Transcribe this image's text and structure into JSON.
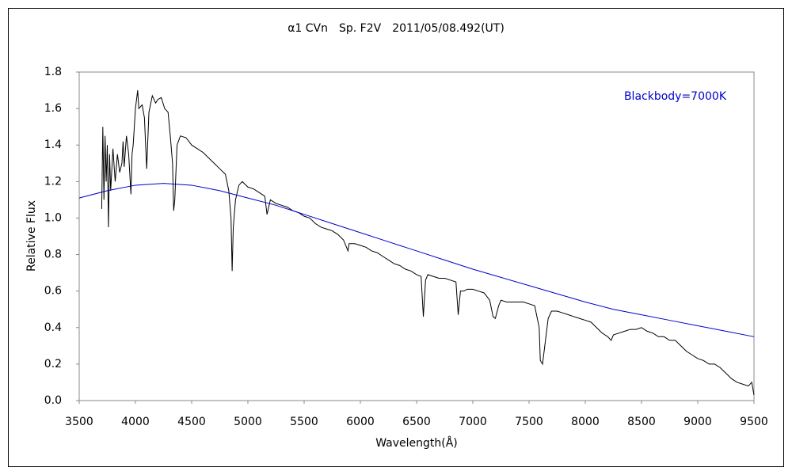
{
  "chart_data": {
    "type": "line",
    "title": "α1 CVn　Sp. F2V　2011/05/08.492(UT)",
    "x_label": "Wavelength(Å)",
    "y_label": "Relative Flux",
    "xlim": [
      3500,
      9500
    ],
    "xticks": [
      3500,
      4000,
      4500,
      5000,
      5500,
      6000,
      6500,
      7000,
      7500,
      8000,
      8500,
      9000,
      9500
    ],
    "ylim": [
      0,
      1.8
    ],
    "yticks": [
      {
        "value": 0,
        "label": "0.0"
      },
      0.2,
      0.4,
      0.6,
      0.8,
      {
        "value": 1,
        "label": "1.0"
      },
      1.2,
      1.4,
      1.6,
      1.8
    ],
    "grid": false,
    "legend": "top-right",
    "series": [
      {
        "color": "#000000",
        "x": [
          3700,
          3710,
          3720,
          3730,
          3740,
          3750,
          3760,
          3770,
          3780,
          3800,
          3820,
          3840,
          3860,
          3880,
          3890,
          3900,
          3920,
          3940,
          3960,
          3970,
          3980,
          4000,
          4020,
          4030,
          4060,
          4080,
          4100,
          4120,
          4150,
          4180,
          4200,
          4230,
          4260,
          4290,
          4310,
          4330,
          4340,
          4350,
          4370,
          4400,
          4450,
          4500,
          4550,
          4600,
          4650,
          4700,
          4750,
          4800,
          4830,
          4850,
          4860,
          4870,
          4890,
          4920,
          4950,
          5000,
          5050,
          5100,
          5150,
          5170,
          5200,
          5250,
          5300,
          5350,
          5400,
          5450,
          5500,
          5550,
          5600,
          5650,
          5700,
          5750,
          5800,
          5850,
          5890,
          5900,
          5950,
          6000,
          6050,
          6100,
          6150,
          6200,
          6250,
          6300,
          6350,
          6400,
          6450,
          6500,
          6540,
          6560,
          6580,
          6600,
          6650,
          6700,
          6750,
          6800,
          6850,
          6870,
          6890,
          6920,
          6950,
          7000,
          7050,
          7100,
          7150,
          7180,
          7200,
          7230,
          7250,
          7300,
          7350,
          7400,
          7450,
          7500,
          7550,
          7590,
          7600,
          7620,
          7640,
          7670,
          7700,
          7750,
          7800,
          7850,
          7900,
          7950,
          8000,
          8050,
          8100,
          8150,
          8200,
          8230,
          8250,
          8300,
          8350,
          8400,
          8450,
          8500,
          8550,
          8600,
          8650,
          8700,
          8750,
          8800,
          8850,
          8900,
          8950,
          9000,
          9050,
          9100,
          9150,
          9200,
          9250,
          9300,
          9350,
          9400,
          9450,
          9480,
          9500
        ],
        "values": [
          1.05,
          1.5,
          1.1,
          1.45,
          1.2,
          1.4,
          0.95,
          1.35,
          1.15,
          1.38,
          1.2,
          1.35,
          1.25,
          1.3,
          1.42,
          1.28,
          1.45,
          1.35,
          1.13,
          1.35,
          1.4,
          1.6,
          1.7,
          1.6,
          1.62,
          1.55,
          1.27,
          1.58,
          1.67,
          1.63,
          1.65,
          1.66,
          1.6,
          1.58,
          1.45,
          1.3,
          1.04,
          1.1,
          1.4,
          1.45,
          1.44,
          1.4,
          1.38,
          1.36,
          1.33,
          1.3,
          1.27,
          1.24,
          1.15,
          1.0,
          0.71,
          0.95,
          1.1,
          1.18,
          1.2,
          1.17,
          1.16,
          1.14,
          1.12,
          1.02,
          1.1,
          1.08,
          1.07,
          1.06,
          1.04,
          1.03,
          1.01,
          1.0,
          0.97,
          0.95,
          0.94,
          0.93,
          0.91,
          0.88,
          0.82,
          0.86,
          0.86,
          0.85,
          0.84,
          0.82,
          0.81,
          0.79,
          0.77,
          0.75,
          0.74,
          0.72,
          0.71,
          0.69,
          0.68,
          0.46,
          0.66,
          0.69,
          0.68,
          0.67,
          0.67,
          0.66,
          0.65,
          0.47,
          0.6,
          0.6,
          0.61,
          0.61,
          0.6,
          0.59,
          0.55,
          0.46,
          0.45,
          0.52,
          0.55,
          0.54,
          0.54,
          0.54,
          0.54,
          0.53,
          0.52,
          0.4,
          0.22,
          0.2,
          0.3,
          0.45,
          0.49,
          0.49,
          0.48,
          0.47,
          0.46,
          0.45,
          0.44,
          0.43,
          0.4,
          0.37,
          0.35,
          0.33,
          0.36,
          0.37,
          0.38,
          0.39,
          0.39,
          0.4,
          0.38,
          0.37,
          0.35,
          0.35,
          0.33,
          0.33,
          0.3,
          0.27,
          0.25,
          0.23,
          0.22,
          0.2,
          0.2,
          0.18,
          0.15,
          0.12,
          0.1,
          0.09,
          0.08,
          0.1,
          0.03
        ]
      },
      {
        "name": "Blackbody=7000K",
        "color": "#0000cc",
        "x": [
          3500,
          3750,
          4000,
          4250,
          4500,
          4750,
          5000,
          5250,
          5500,
          5750,
          6000,
          6250,
          6500,
          6750,
          7000,
          7250,
          7500,
          7750,
          8000,
          8250,
          8500,
          8750,
          9000,
          9250,
          9500
        ],
        "values": [
          1.11,
          1.15,
          1.18,
          1.19,
          1.18,
          1.15,
          1.11,
          1.07,
          1.02,
          0.97,
          0.92,
          0.87,
          0.82,
          0.77,
          0.72,
          0.675,
          0.63,
          0.585,
          0.54,
          0.5,
          0.47,
          0.44,
          0.41,
          0.38,
          0.35
        ]
      }
    ]
  }
}
